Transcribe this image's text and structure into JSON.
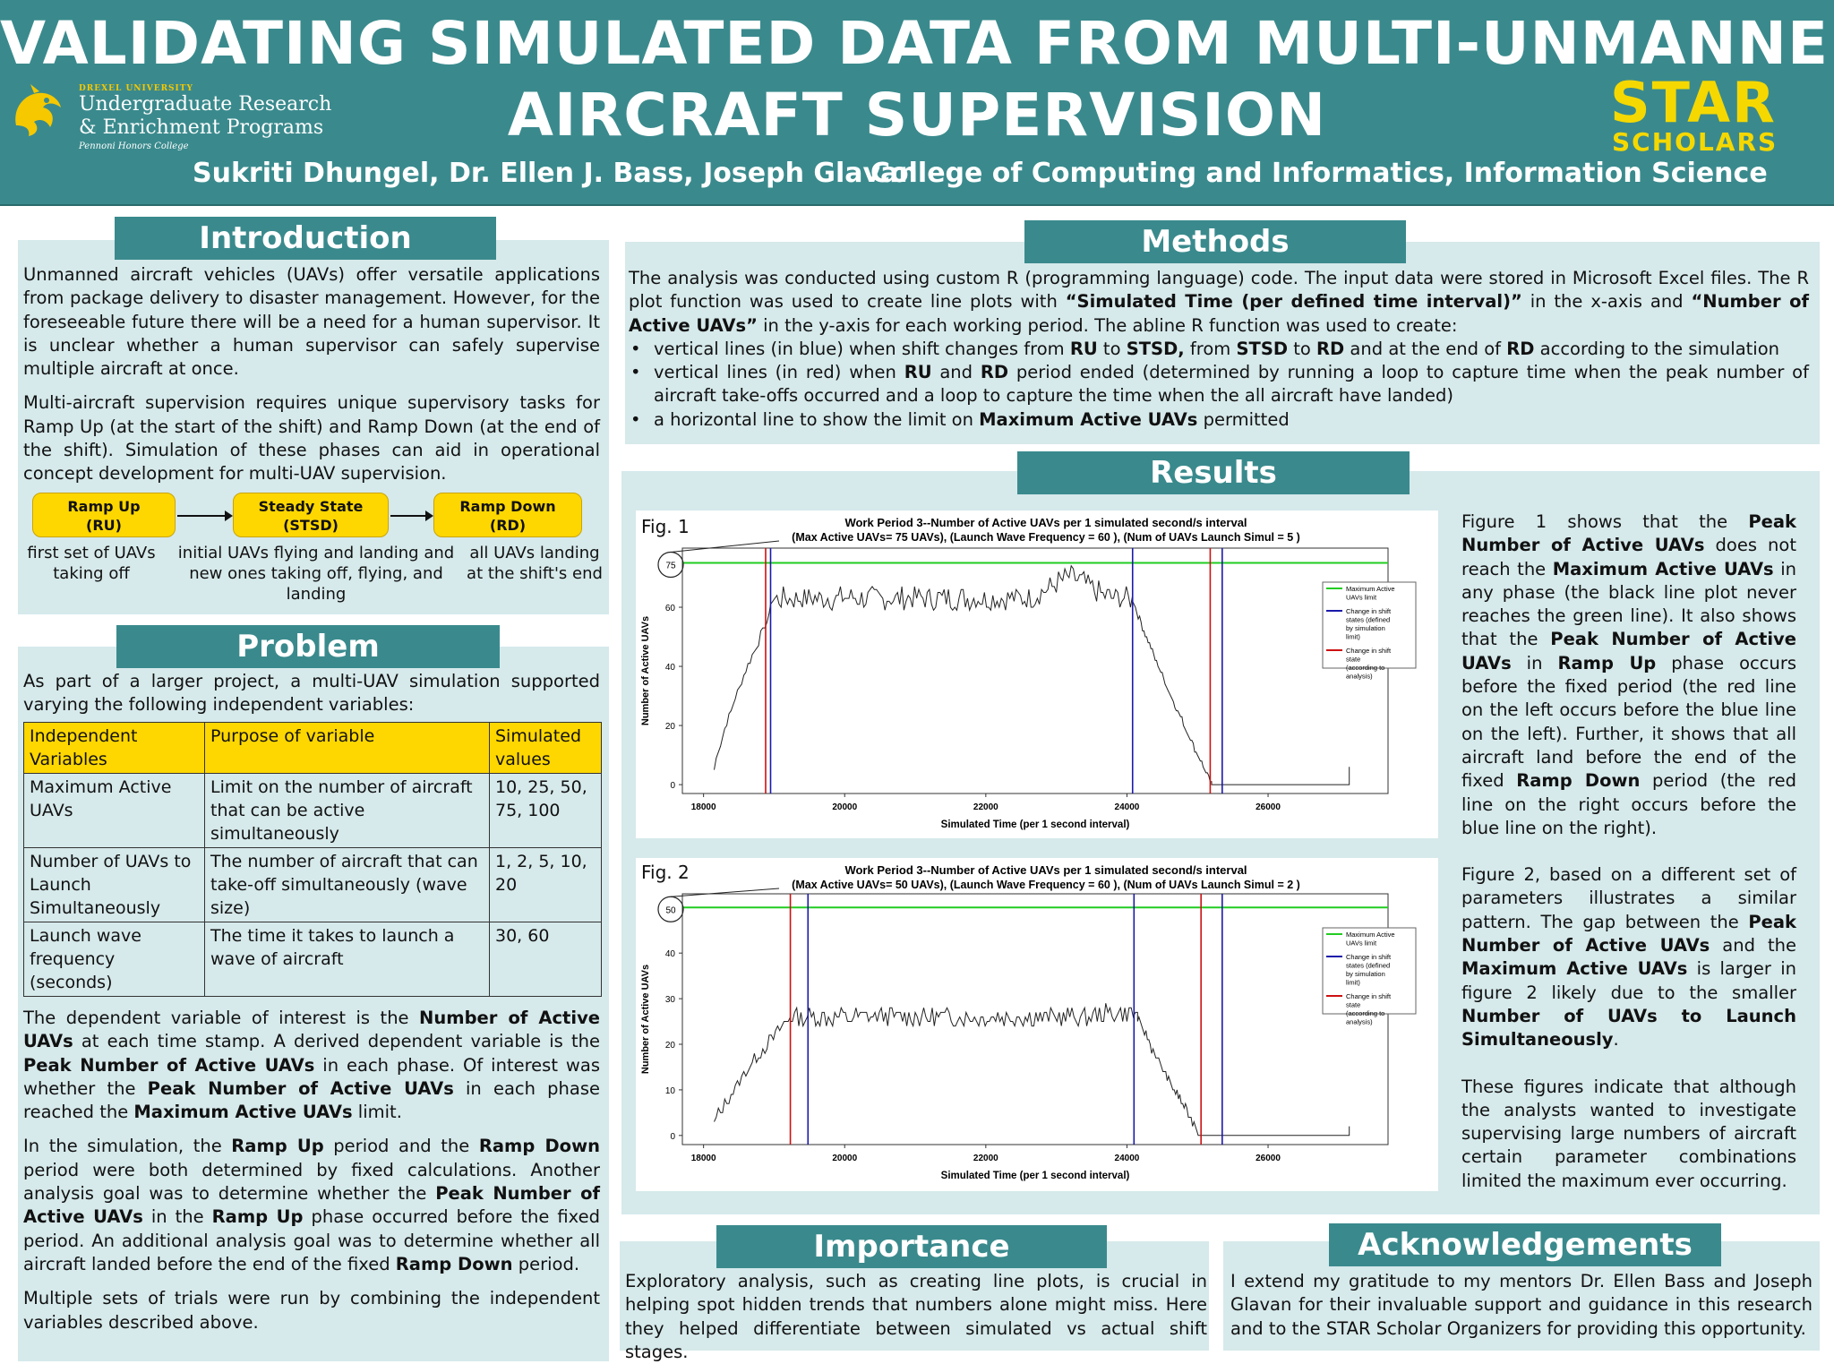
{
  "header": {
    "title_line1": "VALIDATING SIMULATED DATA FROM MULTI-UNMANNED",
    "title_line2": "AIRCRAFT SUPERVISION",
    "authors": "Sukriti Dhungel, Dr. Ellen J. Bass, Joseph Glavan",
    "affiliation": "College of Computing and Informatics, Information Science",
    "drexel_logo": {
      "university": "DREXEL UNIVERSITY",
      "line1": "Undergraduate Research",
      "line2": "& Enrichment Programs",
      "line3": "Pennoni Honors College"
    },
    "star_logo": {
      "word": "STAR",
      "sub": "SCHOLARS"
    }
  },
  "introduction": {
    "title": "Introduction",
    "p1": "Unmanned aircraft vehicles (UAVs) offer versatile applications from package delivery to disaster management. However, for the foreseeable future there will be a need for a human supervisor. It is unclear whether a human supervisor can safely supervise multiple aircraft at once.",
    "p2": "Multi-aircraft supervision requires unique supervisory tasks for Ramp Up (at the start of the shift) and Ramp Down (at the end of the shift). Simulation of these phases can aid in operational concept development for multi-UAV supervision.",
    "flow": [
      {
        "label1": "Ramp Up",
        "label2": "(RU)",
        "desc": "first set of UAVs taking off"
      },
      {
        "label1": "Steady State",
        "label2": "(STSD)",
        "desc": "initial UAVs flying and landing and new ones taking off, flying, and landing"
      },
      {
        "label1": "Ramp Down",
        "label2": "(RD)",
        "desc": "all UAVs landing at the shift's end"
      }
    ]
  },
  "problem": {
    "title": "Problem",
    "p1": "As part of a larger project, a multi-UAV simulation supported varying the following independent variables:",
    "table": {
      "headers": [
        "Independent Variables",
        "Purpose of variable",
        "Simulated values"
      ],
      "rows": [
        [
          "Maximum Active UAVs",
          "Limit on the number of aircraft that can be active simultaneously",
          "10, 25, 50, 75, 100"
        ],
        [
          "Number of UAVs to Launch Simultaneously",
          "The number of aircraft that can take-off simultaneously (wave size)",
          "1, 2, 5, 10, 20"
        ],
        [
          "Launch wave frequency (seconds)",
          "The time it takes to launch a wave of aircraft",
          "30, 60"
        ]
      ]
    },
    "p2_a": "The dependent variable of interest is the ",
    "p2_b": "Number of Active UAVs",
    "p2_c": " at each time stamp. A derived dependent variable is the ",
    "p2_d": "Peak Number of Active UAVs",
    "p2_e": " in each phase. Of interest was whether the ",
    "p2_f": "Peak Number of Active UAVs",
    "p2_g": " in each phase reached the ",
    "p2_h": "Maximum Active UAVs",
    "p2_i": " limit.",
    "p3_a": "In the simulation, the ",
    "p3_b": "Ramp Up",
    "p3_c": " period and the ",
    "p3_d": "Ramp Down",
    "p3_e": " period were both determined by fixed calculations. Another analysis goal was to determine whether the ",
    "p3_f": "Peak Number of Active UAVs",
    "p3_g": " in the ",
    "p3_h": "Ramp Up",
    "p3_i": " phase occurred before the fixed period. An additional analysis goal was to determine whether all aircraft landed before the end of the fixed ",
    "p3_j": "Ramp Down",
    "p3_k": " period.",
    "p4": "Multiple sets of trials were run by combining the independent variables described above."
  },
  "methods": {
    "title": "Methods",
    "p1_a": "The analysis was conducted using custom R (programming language) code. The input data were stored in Microsoft Excel files. The R plot function was used to create line plots with ",
    "p1_b": "“Simulated Time (per defined time interval)”",
    "p1_c": " in the x-axis and ",
    "p1_d": "“Number of Active UAVs”",
    "p1_e": " in the y-axis for each working period. The abline R function was used to create:",
    "b1_a": "vertical lines (in blue) when shift changes from ",
    "b1_b": "RU",
    "b1_c": " to ",
    "b1_d": "STSD,",
    "b1_e": " from ",
    "b1_f": "STSD",
    "b1_g": " to ",
    "b1_h": "RD",
    "b1_i": " and at the end of ",
    "b1_j": "RD",
    "b1_k": " according to the simulation",
    "b2_a": "vertical lines (in red) when ",
    "b2_b": "RU",
    "b2_c": " and ",
    "b2_d": "RD",
    "b2_e": " period ended (determined by running a loop to capture time when the peak number of aircraft take-offs occurred and a loop to capture the time when the all aircraft have landed)",
    "b3_a": "a horizontal line to show the limit on ",
    "b3_b": "Maximum Active UAVs",
    "b3_c": " permitted"
  },
  "results": {
    "title": "Results",
    "fig1_text": [
      {
        "t": "Figure 1 shows that the "
      },
      {
        "t": "Peak Number of Active UAVs",
        "b": true
      },
      {
        "t": " does not reach the "
      },
      {
        "t": "Maximum Active UAVs",
        "b": true
      },
      {
        "t": " in any phase (the black line plot never reaches the green line). It also shows that the "
      },
      {
        "t": "Peak Number of Active UAVs",
        "b": true
      },
      {
        "t": " in "
      },
      {
        "t": "Ramp Up",
        "b": true
      },
      {
        "t": " phase occurs before the fixed period (the red line on the left occurs before the blue line on the left). Further, it shows that all aircraft land before the end of the fixed "
      },
      {
        "t": "Ramp Down",
        "b": true
      },
      {
        "t": " period (the red line on the right occurs before the blue line on the right)."
      }
    ],
    "fig2_text": [
      {
        "t": "Figure 2, based on a different set of parameters illustrates a similar pattern. The gap between the "
      },
      {
        "t": "Peak Number of Active UAVs",
        "b": true
      },
      {
        "t": " and the "
      },
      {
        "t": "Maximum Active UAVs",
        "b": true
      },
      {
        "t": " is larger in figure 2 likely due to the smaller "
      },
      {
        "t": "Number of UAVs to Launch Simultaneously",
        "b": true
      },
      {
        "t": "."
      }
    ],
    "conclusion_text": "These figures indicate that although the analysts wanted to investigate supervising large numbers of aircraft certain parameter combinations limited the maximum ever occurring."
  },
  "chart_data": [
    {
      "type": "line",
      "label": "Fig. 1",
      "title": "Work Period 3--Number of Active UAVs per 1 simulated second/s interval",
      "subtitle_a": "(Max Active UAVs= ",
      "subtitle_max": "75 UAVs",
      "subtitle_b": "), (Launch Wave Frequency = ",
      "subtitle_freq": "60",
      "subtitle_c": " ), (Num of UAVs Launch Simul = ",
      "subtitle_simul": "5",
      "subtitle_d": " )",
      "xlabel": "Simulated Time (per 1 second interval)",
      "ylabel": "Number of Active UAVs",
      "xlim": [
        17700,
        27700
      ],
      "ylim": [
        -3,
        80
      ],
      "xticks": [
        18000,
        20000,
        22000,
        24000,
        26000
      ],
      "yticks": [
        0,
        20,
        40,
        60
      ],
      "circled_tick": "75",
      "max_line": 75,
      "blue_lines": [
        18950,
        24080,
        25350
      ],
      "red_lines": [
        18880,
        25180
      ],
      "legend": [
        "Maximum Active UAVs limit",
        "Change in shift states (defined by simulation limit)",
        "Change in shift state (according to analysis)"
      ],
      "legend_colors": [
        "#22cc22",
        "#1a1aaa",
        "#cc1111"
      ],
      "series": {
        "ramp_start": [
          18150,
          5
        ],
        "ramp_end": [
          18950,
          58
        ],
        "steady_end": 24080,
        "steady_level": 63,
        "noise": 4,
        "bump_center": 23200,
        "bump_height": 7,
        "drop_end": [
          25200,
          0
        ],
        "flat_end": 27150,
        "final_value": 6
      }
    },
    {
      "type": "line",
      "label": "Fig. 2",
      "title": "Work Period 3--Number of Active UAVs per 1 simulated second/s interval",
      "subtitle_a": "(Max Active UAVs= ",
      "subtitle_max": "50 UAVs",
      "subtitle_b": "), (Launch Wave Frequency = ",
      "subtitle_freq": "60",
      "subtitle_c": " ), (Num of UAVs Launch Simul = ",
      "subtitle_simul": "2",
      "subtitle_d": " )",
      "xlabel": "Simulated Time (per 1 second interval)",
      "ylabel": "Number of Active UAVs",
      "xlim": [
        17700,
        27700
      ],
      "ylim": [
        -2,
        53
      ],
      "xticks": [
        18000,
        20000,
        22000,
        24000,
        26000
      ],
      "yticks": [
        0,
        10,
        20,
        30,
        40
      ],
      "circled_tick": "50",
      "max_line": 50,
      "blue_lines": [
        19480,
        24100,
        25350
      ],
      "red_lines": [
        19230,
        25050
      ],
      "legend": [
        "Maximum Active UAVs limit",
        "Change in shift states (defined by simulation limit)",
        "Change in shift state (according to analysis)"
      ],
      "legend_colors": [
        "#22cc22",
        "#1a1aaa",
        "#cc1111"
      ],
      "series": {
        "ramp_start": [
          18150,
          2
        ],
        "ramp_end": [
          19230,
          26
        ],
        "steady_end": 24150,
        "steady_level": 26,
        "noise": 2,
        "bump_center": 23900,
        "bump_height": 1,
        "drop_end": [
          25050,
          0
        ],
        "flat_end": 27150,
        "final_value": 2
      }
    }
  ],
  "importance": {
    "title": "Importance",
    "text": "Exploratory analysis, such as creating line plots, is crucial in helping spot hidden trends that numbers alone might miss. Here they helped differentiate between simulated vs actual shift stages."
  },
  "acknowledgements": {
    "title": "Acknowledgements",
    "text": "I extend my gratitude to my mentors Dr. Ellen Bass and Joseph Glavan for their invaluable support and guidance in this research and to the STAR Scholar Organizers for providing this opportunity."
  },
  "colors": {
    "teal": "#3a8a8d",
    "panel": "#d6e9eb",
    "yellow": "#ffd700"
  }
}
